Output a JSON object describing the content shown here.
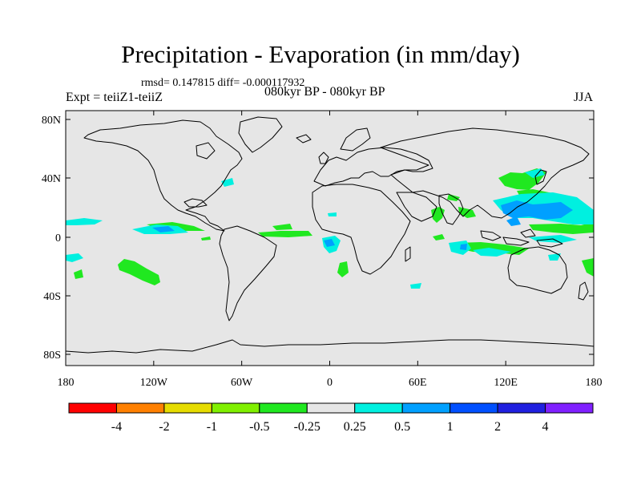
{
  "title": "Precipitation - Evaporation (in mm/day)",
  "stats": "rmsd= 0.147815 diff= -0.000117932",
  "subtitle": "080kyr BP - 080kyr BP",
  "experiment": "Expt = teiiZ1-teiiZ",
  "season": "JJA",
  "colors": {
    "background_field": "#e6e6e6",
    "coastline": "#000000",
    "bins": [
      "#ff0000",
      "#ff8000",
      "#e6dc00",
      "#80f000",
      "#20e820",
      "#e6e6e6",
      "#00f0e0",
      "#00a0ff",
      "#0050ff",
      "#2020e0",
      "#8020ff"
    ]
  },
  "axes": {
    "lat_labels": [
      "80N",
      "40N",
      "0",
      "40S",
      "80S"
    ],
    "lon_labels": [
      "180",
      "120W",
      "60W",
      "0",
      "60E",
      "120E",
      "180"
    ]
  },
  "colorbar": {
    "labels": [
      "-4",
      "-2",
      "-1",
      "-0.5",
      "-0.25",
      "0.25",
      "0.5",
      "1",
      "2",
      "4"
    ]
  }
}
